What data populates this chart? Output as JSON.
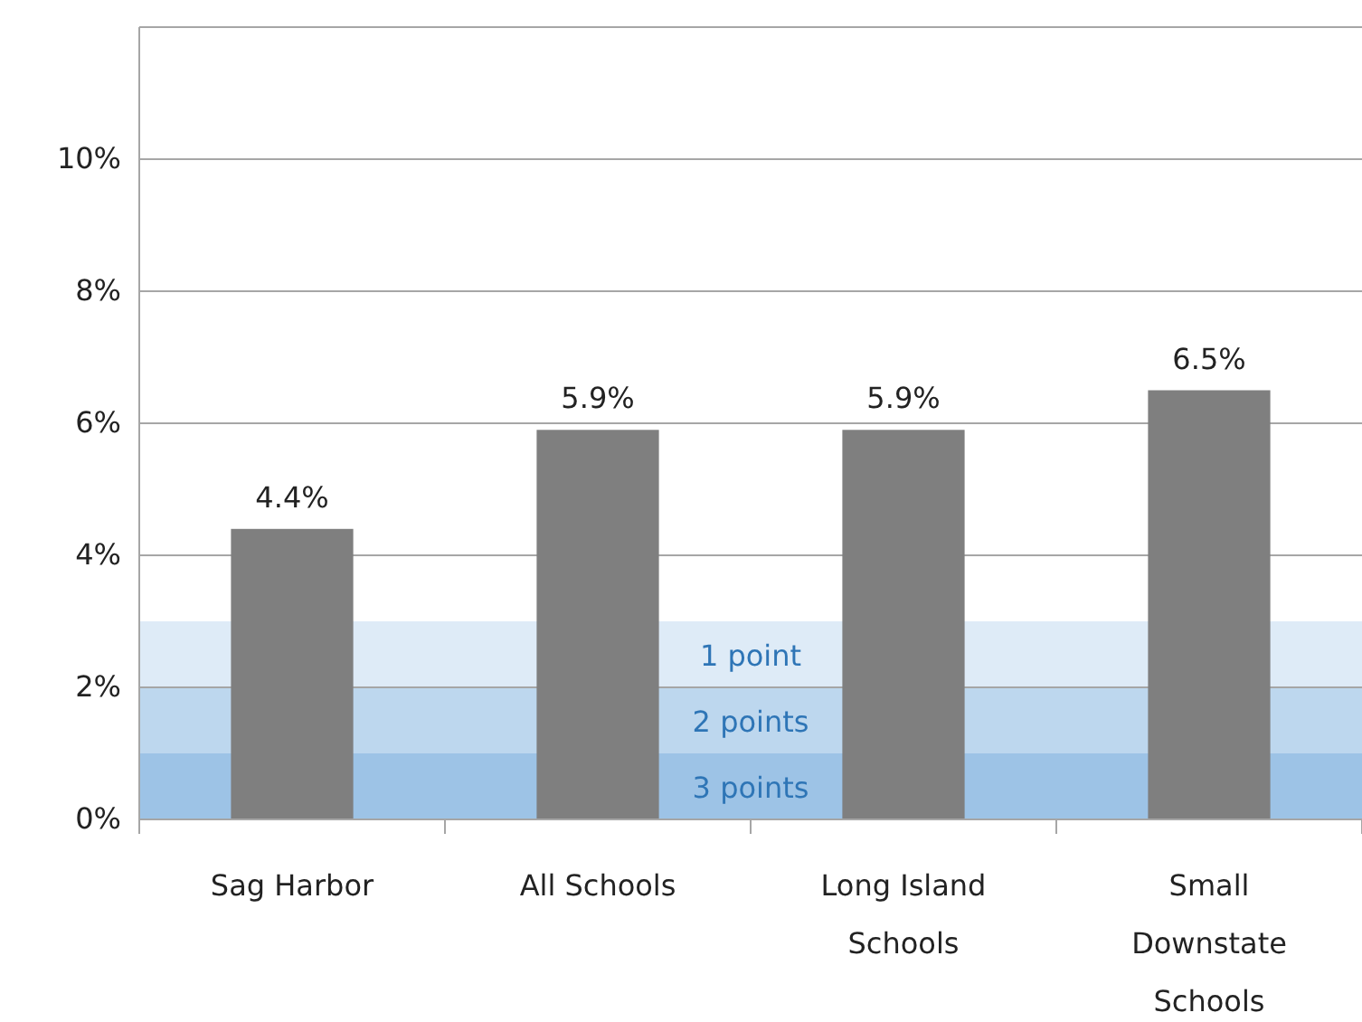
{
  "chart_data": {
    "type": "bar",
    "categories": [
      "Sag Harbor",
      "All Schools",
      "Long Island Schools",
      "Small Downstate Schools"
    ],
    "values": [
      4.4,
      5.9,
      5.9,
      6.5
    ],
    "color": "#7f7f7f",
    "value_labels": [
      "4.4%",
      "5.9%",
      "5.9%",
      "6.5%"
    ],
    "ylim": [
      0,
      12
    ],
    "yticks": [
      {
        "value": 0,
        "label": "0%"
      },
      {
        "value": 2,
        "label": "2%"
      },
      {
        "value": 4,
        "label": "4%"
      },
      {
        "value": 6,
        "label": "6%"
      },
      {
        "value": 8,
        "label": "8%"
      },
      {
        "value": 10,
        "label": "10%"
      },
      {
        "value": 12,
        "label": null
      }
    ],
    "grid": "y",
    "bands": [
      {
        "axis": "y",
        "from": 0,
        "to": 1,
        "label": "3 points",
        "color": "#9dc3e6"
      },
      {
        "axis": "y",
        "from": 1,
        "to": 2,
        "label": "2 points",
        "color": "#bdd7ee"
      },
      {
        "axis": "y",
        "from": 2,
        "to": 3,
        "label": "1 point",
        "color": "#deebf7"
      }
    ]
  }
}
